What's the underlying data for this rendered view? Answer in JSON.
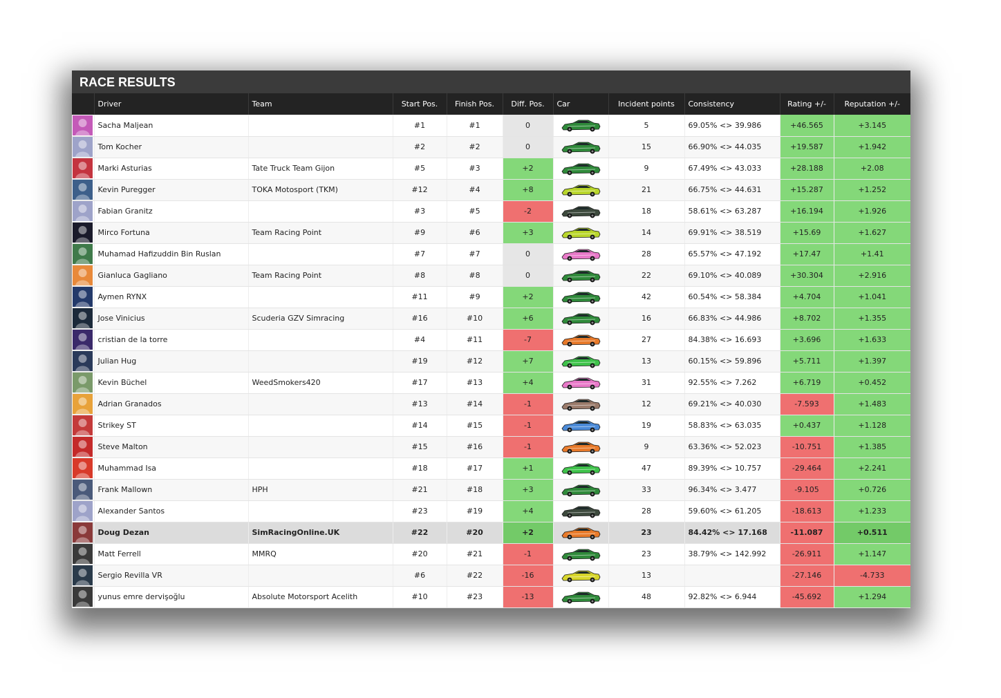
{
  "title": "RACE RESULTS",
  "columns": {
    "driver": "Driver",
    "team": "Team",
    "start": "Start Pos.",
    "finish": "Finish Pos.",
    "diff": "Diff. Pos.",
    "car": "Car",
    "incidents": "Incident points",
    "consistency": "Consistency",
    "rating": "Rating +/-",
    "reputation": "Reputation +/-"
  },
  "colors": {
    "positive": "#84d879",
    "negative": "#ef7070",
    "neutral": "#e6e6e6",
    "header": "#232323",
    "title_bar": "#3b3b3b"
  },
  "rows": [
    {
      "driver": "Sacha Maljean",
      "team": "",
      "start": "#1",
      "finish": "#1",
      "diff": "0",
      "incidents": "5",
      "consistency": "69.05% <> 39.986",
      "rating": "+46.565",
      "reputation": "+3.145",
      "car_color": "#2f8a3a",
      "avatar_color": "#c45ab8"
    },
    {
      "driver": "Tom Kocher",
      "team": "",
      "start": "#2",
      "finish": "#2",
      "diff": "0",
      "incidents": "15",
      "consistency": "66.90% <> 44.035",
      "rating": "+19.587",
      "reputation": "+1.942",
      "car_color": "#2f8a3a",
      "avatar_color": "#9ea3c9"
    },
    {
      "driver": "Marki Asturias",
      "team": "Tate Truck Team Gijon",
      "start": "#5",
      "finish": "#3",
      "diff": "+2",
      "incidents": "9",
      "consistency": "67.49% <> 43.033",
      "rating": "+28.188",
      "reputation": "+2.08",
      "car_color": "#2f8a3a",
      "avatar_color": "#c4343f"
    },
    {
      "driver": "Kevin Puregger",
      "team": "TOKA Motosport (TKM)",
      "start": "#12",
      "finish": "#4",
      "diff": "+8",
      "incidents": "21",
      "consistency": "66.75% <> 44.631",
      "rating": "+15.287",
      "reputation": "+1.252",
      "car_color": "#b9d62a",
      "avatar_color": "#3d5f8a"
    },
    {
      "driver": "Fabian Granitz",
      "team": "",
      "start": "#3",
      "finish": "#5",
      "diff": "-2",
      "incidents": "18",
      "consistency": "58.61% <> 63.287",
      "rating": "+16.194",
      "reputation": "+1.926",
      "car_color": "#3d4a3d",
      "avatar_color": "#9ea3c9"
    },
    {
      "driver": "Mirco Fortuna",
      "team": "Team Racing Point",
      "start": "#9",
      "finish": "#6",
      "diff": "+3",
      "incidents": "14",
      "consistency": "69.91% <> 38.519",
      "rating": "+15.69",
      "reputation": "+1.627",
      "car_color": "#b9d62a",
      "avatar_color": "#1a1a2a"
    },
    {
      "driver": "Muhamad Hafizuddin Bin Ruslan",
      "team": "",
      "start": "#7",
      "finish": "#7",
      "diff": "0",
      "incidents": "28",
      "consistency": "65.57% <> 47.192",
      "rating": "+17.47",
      "reputation": "+1.41",
      "car_color": "#e878c8",
      "avatar_color": "#3f7a4a"
    },
    {
      "driver": "Gianluca Gagliano",
      "team": "Team Racing Point",
      "start": "#8",
      "finish": "#8",
      "diff": "0",
      "incidents": "22",
      "consistency": "69.10% <> 40.089",
      "rating": "+30.304",
      "reputation": "+2.916",
      "car_color": "#2f8a3a",
      "avatar_color": "#e8893a"
    },
    {
      "driver": "Aymen RYNX",
      "team": "",
      "start": "#11",
      "finish": "#9",
      "diff": "+2",
      "incidents": "42",
      "consistency": "60.54% <> 58.384",
      "rating": "+4.704",
      "reputation": "+1.041",
      "car_color": "#2f8a3a",
      "avatar_color": "#243a6a"
    },
    {
      "driver": "Jose Vinicius",
      "team": "Scuderia GZV Simracing",
      "start": "#16",
      "finish": "#10",
      "diff": "+6",
      "incidents": "16",
      "consistency": "66.83% <> 44.986",
      "rating": "+8.702",
      "reputation": "+1.355",
      "car_color": "#2f8a3a",
      "avatar_color": "#1c2a3a"
    },
    {
      "driver": "cristian de la torre",
      "team": "",
      "start": "#4",
      "finish": "#11",
      "diff": "-7",
      "incidents": "27",
      "consistency": "84.38% <> 16.693",
      "rating": "+3.696",
      "reputation": "+1.633",
      "car_color": "#e87a2a",
      "avatar_color": "#3a2a6a"
    },
    {
      "driver": "Julian Hug",
      "team": "",
      "start": "#19",
      "finish": "#12",
      "diff": "+7",
      "incidents": "13",
      "consistency": "60.15% <> 59.896",
      "rating": "+5.711",
      "reputation": "+1.397",
      "car_color": "#3ec24a",
      "avatar_color": "#2a3a5a"
    },
    {
      "driver": "Kevin Büchel",
      "team": "WeedSmokers420",
      "start": "#17",
      "finish": "#13",
      "diff": "+4",
      "incidents": "31",
      "consistency": "92.55% <> 7.262",
      "rating": "+6.719",
      "reputation": "+0.452",
      "car_color": "#e878c8",
      "avatar_color": "#7a9a6a"
    },
    {
      "driver": "Adrian Granados",
      "team": "",
      "start": "#13",
      "finish": "#14",
      "diff": "-1",
      "incidents": "12",
      "consistency": "69.21% <> 40.030",
      "rating": "-7.593",
      "reputation": "+1.483",
      "car_color": "#9a7a6a",
      "avatar_color": "#e8a23a"
    },
    {
      "driver": "Strikey ST",
      "team": "",
      "start": "#14",
      "finish": "#15",
      "diff": "-1",
      "incidents": "19",
      "consistency": "58.83% <> 63.035",
      "rating": "+0.437",
      "reputation": "+1.128",
      "car_color": "#4a8ad8",
      "avatar_color": "#c43a3a"
    },
    {
      "driver": "Steve Malton",
      "team": "",
      "start": "#15",
      "finish": "#16",
      "diff": "-1",
      "incidents": "9",
      "consistency": "63.36% <> 52.023",
      "rating": "-10.751",
      "reputation": "+1.385",
      "car_color": "#e87a2a",
      "avatar_color": "#c42a2a"
    },
    {
      "driver": "Muhammad Isa",
      "team": "",
      "start": "#18",
      "finish": "#17",
      "diff": "+1",
      "incidents": "47",
      "consistency": "89.39% <> 10.757",
      "rating": "-29.464",
      "reputation": "+2.241",
      "car_color": "#3ec24a",
      "avatar_color": "#d83a2a"
    },
    {
      "driver": "Frank Mallown",
      "team": "HPH",
      "start": "#21",
      "finish": "#18",
      "diff": "+3",
      "incidents": "33",
      "consistency": "96.34% <> 3.477",
      "rating": "-9.105",
      "reputation": "+0.726",
      "car_color": "#2f8a3a",
      "avatar_color": "#4a5a7a"
    },
    {
      "driver": "Alexander Santos",
      "team": "",
      "start": "#23",
      "finish": "#19",
      "diff": "+4",
      "incidents": "28",
      "consistency": "59.60% <> 61.205",
      "rating": "-18.613",
      "reputation": "+1.233",
      "car_color": "#3d4a3d",
      "avatar_color": "#9ea3c9"
    },
    {
      "driver": "Doug Dezan",
      "team": "SimRacingOnline.UK",
      "start": "#22",
      "finish": "#20",
      "diff": "+2",
      "incidents": "23",
      "consistency": "84.42% <> 17.168",
      "rating": "-11.087",
      "reputation": "+0.511",
      "car_color": "#e87a2a",
      "avatar_color": "#8a3a3a",
      "highlight": true
    },
    {
      "driver": "Matt Ferrell",
      "team": "MMRQ",
      "start": "#20",
      "finish": "#21",
      "diff": "-1",
      "incidents": "23",
      "consistency": "38.79% <> 142.992",
      "rating": "-26.911",
      "reputation": "+1.147",
      "car_color": "#2f8a3a",
      "avatar_color": "#3a3a3a"
    },
    {
      "driver": "Sergio Revilla VR",
      "team": "",
      "start": "#6",
      "finish": "#22",
      "diff": "-16",
      "incidents": "13",
      "consistency": "",
      "rating": "-27.146",
      "reputation": "-4.733",
      "car_color": "#d8d62a",
      "avatar_color": "#2a3a4a"
    },
    {
      "driver": "yunus emre dervişoğlu",
      "team": "Absolute Motorsport Acelith",
      "start": "#10",
      "finish": "#23",
      "diff": "-13",
      "incidents": "48",
      "consistency": "92.82% <> 6.944",
      "rating": "-45.692",
      "reputation": "+1.294",
      "car_color": "#2f8a3a",
      "avatar_color": "#3a3a3a"
    }
  ]
}
